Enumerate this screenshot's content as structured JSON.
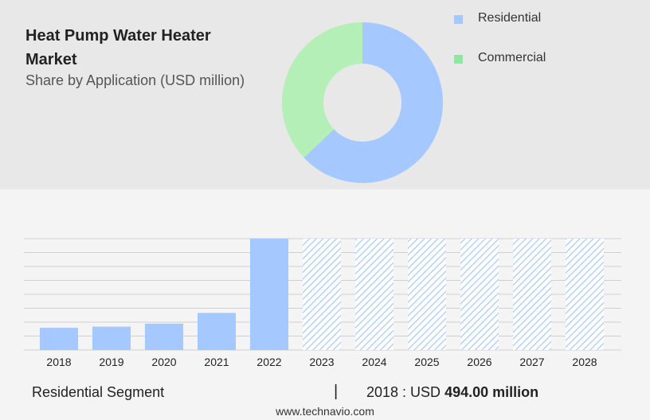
{
  "header": {
    "title": "Heat Pump Water Heater Market",
    "subtitle": "Share by Application (USD million)"
  },
  "legend": [
    {
      "label": "Residential",
      "color": "#a4c8ff"
    },
    {
      "label": "Commercial",
      "color": "#8ee6a0"
    }
  ],
  "colors": {
    "residential": "#a4c8ff",
    "commercial": "#b5efb8",
    "forecast_hatch": "#a4c8ff",
    "grid": "#cfcfcf"
  },
  "chart_data": [
    {
      "type": "pie",
      "variant": "donut",
      "categories": [
        "Residential",
        "Commercial"
      ],
      "values": [
        63,
        37
      ]
    },
    {
      "type": "bar",
      "categories": [
        "2018",
        "2019",
        "2020",
        "2021",
        "2022",
        "2023",
        "2024",
        "2025",
        "2026",
        "2027",
        "2028"
      ],
      "values": [
        494,
        520,
        588,
        825,
        2480,
        null,
        null,
        null,
        null,
        null,
        null
      ],
      "forecast_categories": [
        "2023",
        "2024",
        "2025",
        "2026",
        "2027",
        "2028"
      ],
      "ylim": [
        0,
        2480
      ],
      "grid": true
    }
  ],
  "footer": {
    "segment_label": "Residential Segment",
    "separator": "|",
    "value_prefix": "2018 : USD",
    "value_amount": "494.00 million",
    "url": "www.technavio.com"
  }
}
